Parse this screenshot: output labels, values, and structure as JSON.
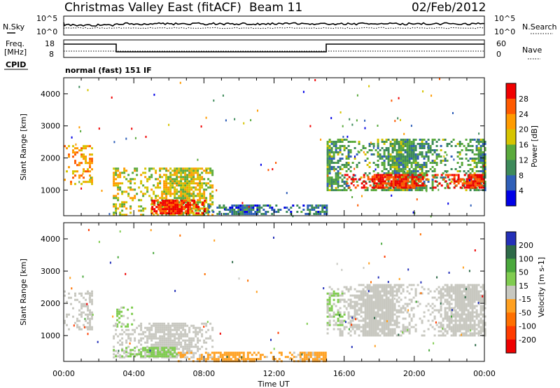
{
  "header": {
    "station": "Christmas Valley East (fitACF)",
    "beam": "Beam 11",
    "date": "02/Feb/2012"
  },
  "noise_panel": {
    "left_label": "N.Sky",
    "right_label": "N.Search",
    "left_ticks": [
      "10^5",
      "10^0"
    ],
    "right_ticks": [
      "10^5",
      "10^0"
    ]
  },
  "freq_panel": {
    "left_label_1": "Freq.",
    "left_label_2": "[MHz]",
    "right_label": "Nave",
    "left_ticks": [
      "18",
      "8"
    ],
    "right_ticks": [
      "60",
      "0"
    ]
  },
  "cpid": {
    "label": "CPID",
    "value": "normal (fast) 151 IF"
  },
  "colors": {
    "power_scale": [
      "#0000e6",
      "#2f5fb8",
      "#3d8a5a",
      "#5aaa3c",
      "#d6c400",
      "#ff9b00",
      "#ff5a00",
      "#f00000"
    ],
    "velocity_scale": [
      "#2430b8",
      "#2e6a48",
      "#4aa83c",
      "#80cc50",
      "#c8c8c0",
      "#ffa020",
      "#ff7000",
      "#ff3c00",
      "#ee0000"
    ]
  },
  "chart_data": [
    {
      "type": "heatmap",
      "quantity": "Power",
      "ylabel": "Slant Range [km]",
      "yticks": [
        1000,
        2000,
        3000,
        4000
      ],
      "ylim": [
        200,
        4500
      ],
      "colorbar": {
        "label": "Power [dB]",
        "tick_labels": [
          "4",
          "8",
          "12",
          "16",
          "20",
          "24",
          "28"
        ],
        "range": [
          0,
          32
        ]
      },
      "echo_regions": [
        {
          "start_hour": 0.0,
          "end_hour": 1.6,
          "range_km": [
            1200,
            2400
          ],
          "level_db": 22
        },
        {
          "start_hour": 2.8,
          "end_hour": 8.5,
          "range_km": [
            250,
            1700
          ],
          "level_db": 18
        },
        {
          "start_hour": 5.0,
          "end_hour": 8.0,
          "range_km": [
            250,
            700
          ],
          "level_db": 30
        },
        {
          "start_hour": 8.0,
          "end_hour": 15.0,
          "range_km": [
            250,
            550
          ],
          "level_db": 8
        },
        {
          "start_hour": 15.0,
          "end_hour": 24.0,
          "range_km": [
            1000,
            2600
          ],
          "level_db": 12
        },
        {
          "start_hour": 16.0,
          "end_hour": 24.0,
          "range_km": [
            1050,
            1500
          ],
          "level_db": 29
        }
      ]
    },
    {
      "type": "heatmap",
      "quantity": "Velocity",
      "xlabel": "Time UT",
      "ylabel": "Slant Range [km]",
      "xticks": [
        "00:00",
        "04:00",
        "08:00",
        "12:00",
        "16:00",
        "20:00",
        "00:00"
      ],
      "yticks": [
        1000,
        2000,
        3000,
        4000
      ],
      "ylim": [
        200,
        4500
      ],
      "colorbar": {
        "label": "Velocity [m s-1]",
        "tick_labels": [
          "200",
          "100",
          "50",
          "15",
          "-15",
          "-50",
          "-100",
          "-200"
        ],
        "range": [
          -250,
          250
        ]
      },
      "echo_regions": [
        {
          "start_hour": 0.0,
          "end_hour": 1.6,
          "range_km": [
            1200,
            2400
          ],
          "velocity": 0
        },
        {
          "start_hour": 3.0,
          "end_hour": 4.0,
          "range_km": [
            1300,
            1900
          ],
          "velocity": 40
        },
        {
          "start_hour": 2.8,
          "end_hour": 8.5,
          "range_km": [
            350,
            1400
          ],
          "velocity": 0
        },
        {
          "start_hour": 2.8,
          "end_hour": 6.5,
          "range_km": [
            350,
            650
          ],
          "velocity": 40
        },
        {
          "start_hour": 6.5,
          "end_hour": 15.0,
          "range_km": [
            200,
            500
          ],
          "velocity": -40
        },
        {
          "start_hour": 15.0,
          "end_hour": 16.0,
          "range_km": [
            1300,
            2400
          ],
          "velocity": 40
        },
        {
          "start_hour": 15.0,
          "end_hour": 24.0,
          "range_km": [
            1000,
            2600
          ],
          "velocity": 0
        }
      ]
    }
  ]
}
